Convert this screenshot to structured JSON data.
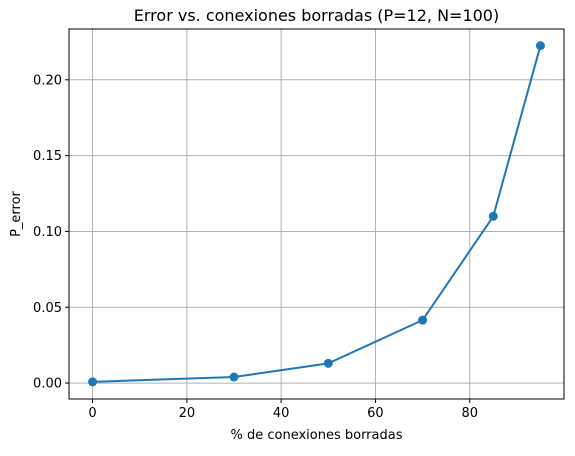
{
  "chart_data": {
    "type": "line",
    "title": "Error vs. conexiones borradas (P=12, N=100)",
    "xlabel": "% de conexiones borradas",
    "ylabel": "P_error",
    "xlim": [
      -5,
      100
    ],
    "ylim": [
      -0.0105,
      0.2335
    ],
    "grid": true,
    "x_ticks": [
      0,
      20,
      40,
      60,
      80
    ],
    "x_tick_labels": [
      "0",
      "20",
      "40",
      "60",
      "80"
    ],
    "y_ticks": [
      0.0,
      0.05,
      0.1,
      0.15,
      0.2
    ],
    "y_tick_labels": [
      "0.00",
      "0.05",
      "0.10",
      "0.15",
      "0.20"
    ],
    "series": [
      {
        "color": "#1f77b4",
        "marker": "circle",
        "x": [
          0,
          30,
          50,
          70,
          85,
          95
        ],
        "y": [
          0.0008,
          0.004,
          0.013,
          0.0415,
          0.11,
          0.2225
        ]
      }
    ]
  }
}
